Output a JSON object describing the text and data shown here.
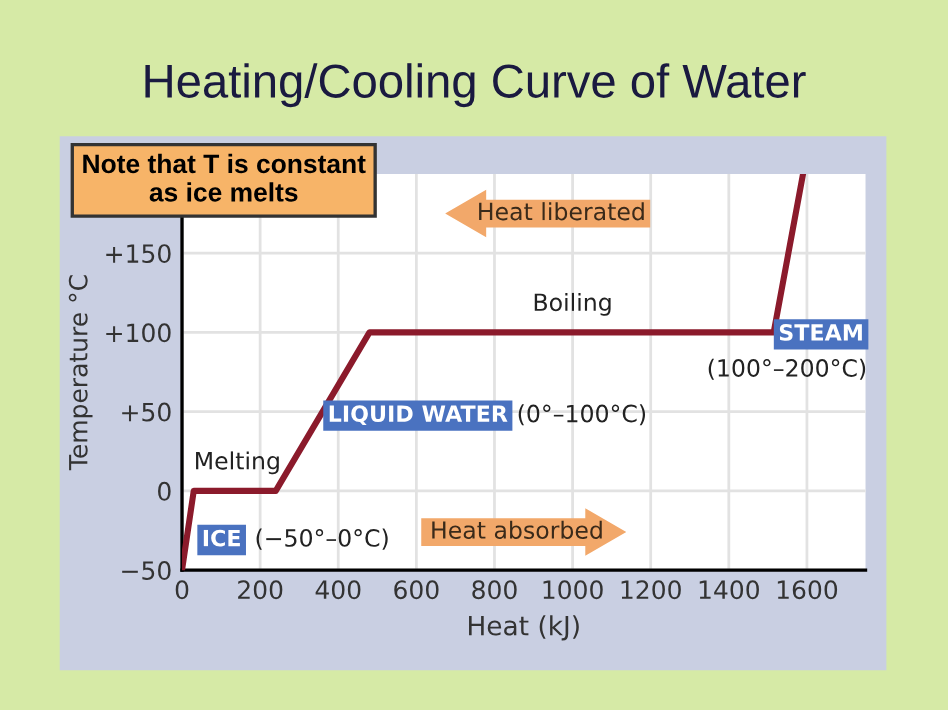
{
  "chart_data": {
    "type": "line",
    "title": "Heating/Cooling Curve of Water",
    "xlabel": "Heat (kJ)",
    "ylabel": "Temperature °C",
    "x": [
      0,
      30,
      240,
      480,
      1515,
      1590
    ],
    "series": [
      {
        "color": "#8b1a2b",
        "values": [
          -50,
          0,
          0,
          100,
          100,
          200
        ]
      }
    ],
    "xlim": [
      0,
      1750
    ],
    "ylim": [
      -50,
      200
    ],
    "xticks": [
      0,
      200,
      400,
      600,
      800,
      1000,
      1200,
      1400,
      1600
    ],
    "yticks": [
      {
        "value": -50,
        "label": "−50"
      },
      0,
      {
        "value": 50,
        "label": "+50"
      },
      {
        "value": 100,
        "label": "+100"
      },
      {
        "value": 150,
        "label": "+150"
      }
    ],
    "grid": true,
    "marker": "none",
    "line_style": "solid",
    "annotations": [
      "Note that T is constant\nas ice melts",
      "Heat liberated",
      "Heat absorbed",
      "ICE",
      "(−50°–0°C)",
      "LIQUID WATER",
      "(0°–100°C)",
      "STEAM",
      "(100°–200°C)",
      {
        "text": "Melting",
        "x": 30,
        "y": 0
      },
      {
        "text": "Boiling",
        "x": 1000,
        "y": 100
      }
    ]
  }
}
